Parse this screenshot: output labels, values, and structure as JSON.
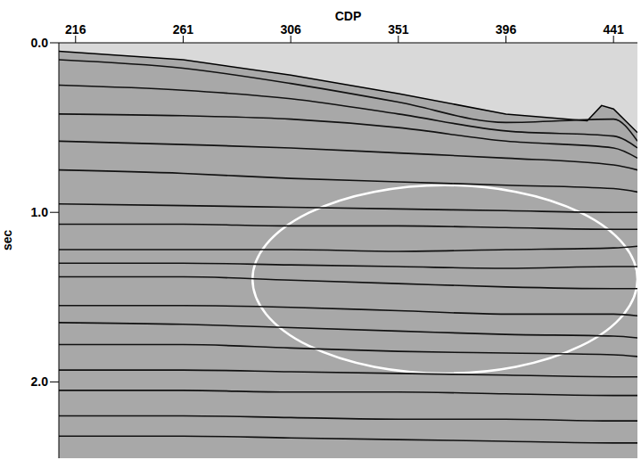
{
  "chart_data": {
    "type": "line",
    "xlabel": "CDP",
    "ylabel": "sec",
    "xlim": [
      209,
      451
    ],
    "xticks": [
      216,
      261,
      306,
      351,
      396,
      441
    ],
    "ylim": [
      0,
      2.45
    ],
    "yticks": [
      {
        "value": 0,
        "label": "0.0"
      },
      {
        "value": 1,
        "label": "1.0"
      },
      {
        "value": 2,
        "label": "2.0"
      }
    ],
    "grid": false,
    "x": [
      209,
      261,
      306,
      351,
      396,
      441,
      451
    ],
    "seafloor": {
      "x": [
        209,
        261,
        306,
        351,
        396,
        430,
        436,
        441,
        451
      ],
      "values": [
        0.05,
        0.1,
        0.19,
        0.3,
        0.42,
        0.46,
        0.37,
        0.39,
        0.53
      ],
      "color": "#d9d9d9"
    },
    "series": [
      {
        "color": "#111111",
        "values": [
          0.1,
          0.15,
          0.24,
          0.35,
          0.47,
          0.45,
          0.58
        ]
      },
      {
        "color": "#111111",
        "values": [
          0.25,
          0.28,
          0.33,
          0.42,
          0.52,
          0.55,
          0.62
        ]
      },
      {
        "color": "#111111",
        "values": [
          0.42,
          0.43,
          0.45,
          0.5,
          0.58,
          0.62,
          0.68
        ]
      },
      {
        "color": "#111111",
        "values": [
          0.58,
          0.6,
          0.62,
          0.65,
          0.68,
          0.72,
          0.75
        ]
      },
      {
        "color": "#111111",
        "values": [
          0.75,
          0.77,
          0.8,
          0.82,
          0.84,
          0.86,
          0.88
        ]
      },
      {
        "color": "#111111",
        "values": [
          0.95,
          0.96,
          0.97,
          0.98,
          0.99,
          1.0,
          1.0
        ]
      },
      {
        "color": "#111111",
        "values": [
          1.07,
          1.07,
          1.08,
          1.08,
          1.09,
          1.1,
          1.1
        ]
      },
      {
        "color": "#111111",
        "values": [
          1.22,
          1.22,
          1.22,
          1.23,
          1.22,
          1.21,
          1.2
        ]
      },
      {
        "color": "#111111",
        "values": [
          1.3,
          1.3,
          1.31,
          1.32,
          1.33,
          1.32,
          1.32
        ]
      },
      {
        "color": "#111111",
        "values": [
          1.38,
          1.38,
          1.4,
          1.42,
          1.44,
          1.45,
          1.45
        ]
      },
      {
        "color": "#111111",
        "values": [
          1.55,
          1.55,
          1.56,
          1.58,
          1.6,
          1.6,
          1.61
        ]
      },
      {
        "color": "#111111",
        "values": [
          1.65,
          1.66,
          1.68,
          1.7,
          1.72,
          1.73,
          1.74
        ]
      },
      {
        "color": "#111111",
        "values": [
          1.78,
          1.78,
          1.8,
          1.82,
          1.83,
          1.84,
          1.85
        ]
      },
      {
        "color": "#111111",
        "values": [
          1.93,
          1.93,
          1.94,
          1.95,
          1.96,
          1.97,
          1.97
        ]
      },
      {
        "color": "#111111",
        "values": [
          2.05,
          2.05,
          2.06,
          2.06,
          2.07,
          2.08,
          2.08
        ]
      },
      {
        "color": "#111111",
        "values": [
          2.2,
          2.2,
          2.21,
          2.22,
          2.22,
          2.23,
          2.23
        ]
      },
      {
        "color": "#111111",
        "values": [
          2.32,
          2.32,
          2.33,
          2.34,
          2.35,
          2.36,
          2.36
        ]
      }
    ],
    "ellipse": {
      "x": [
        290,
        451
      ],
      "y": [
        0.84,
        1.95
      ],
      "color": "#ffffff"
    }
  }
}
